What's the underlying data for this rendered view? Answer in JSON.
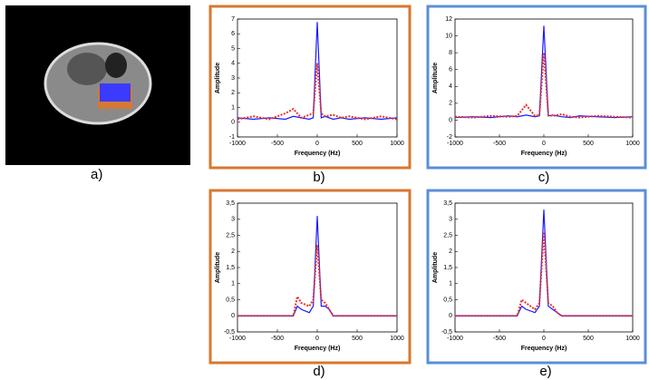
{
  "image_caption": "a)",
  "chart_data": [
    {
      "type": "line",
      "caption": "b)",
      "frame_color": "#d9772e",
      "x_label": "Frequency (Hz)",
      "y_label": "Amplitude",
      "x": [
        -1000,
        -800,
        -600,
        -400,
        -300,
        -200,
        -100,
        -50,
        0,
        50,
        100,
        200,
        300,
        400,
        600,
        800,
        1000
      ],
      "xlim": [
        -1000,
        1000
      ],
      "xticks": [
        -1000,
        -500,
        0,
        500,
        1000
      ],
      "ylim": [
        -1,
        7
      ],
      "yticks": [
        -1,
        0,
        1,
        2,
        3,
        4,
        5,
        6,
        7
      ],
      "series": [
        {
          "color": "#1a1aff",
          "line_style": "solid",
          "values": [
            0.3,
            0.2,
            0.3,
            0.2,
            0.4,
            0.3,
            0.2,
            0.3,
            6.8,
            0.3,
            0.4,
            0.2,
            0.3,
            0.2,
            0.3,
            0.2,
            0.3
          ]
        },
        {
          "color": "#e8302a",
          "line_style": "dotted",
          "values": [
            0.2,
            0.4,
            0.2,
            0.6,
            0.9,
            0.3,
            0.5,
            0.6,
            4,
            0.6,
            0.4,
            0.5,
            0.3,
            0.4,
            0.2,
            0.4,
            0.2
          ]
        }
      ]
    },
    {
      "type": "line",
      "caption": "c)",
      "frame_color": "#5b8fd6",
      "x_label": "Frequency (Hz)",
      "y_label": "Amplitude",
      "x": [
        -1000,
        -800,
        -600,
        -400,
        -300,
        -200,
        -100,
        -50,
        0,
        50,
        100,
        200,
        300,
        400,
        600,
        800,
        1000
      ],
      "xlim": [
        -1000,
        1000
      ],
      "xticks": [
        -1000,
        -500,
        0,
        500,
        1000
      ],
      "ylim": [
        -2,
        12
      ],
      "yticks": [
        -2,
        0,
        2,
        4,
        6,
        8,
        10,
        12
      ],
      "series": [
        {
          "color": "#1a1aff",
          "line_style": "solid",
          "values": [
            0.3,
            0.4,
            0.3,
            0.5,
            0.4,
            0.6,
            0.4,
            0.5,
            11.2,
            0.5,
            0.6,
            0.4,
            0.3,
            0.5,
            0.4,
            0.3,
            0.4
          ]
        },
        {
          "color": "#e8302a",
          "line_style": "dotted",
          "values": [
            0.4,
            0.3,
            0.5,
            0.4,
            0.5,
            1.8,
            0.5,
            0.6,
            8,
            0.6,
            0.5,
            0.7,
            0.4,
            0.3,
            0.5,
            0.4,
            0.3
          ]
        }
      ]
    },
    {
      "type": "line",
      "caption": "d)",
      "frame_color": "#d9772e",
      "x_label": "Frequency (Hz)",
      "y_label": "Amplitude",
      "x": [
        -1000,
        -800,
        -600,
        -400,
        -300,
        -250,
        -200,
        -100,
        -50,
        0,
        50,
        100,
        150,
        200,
        400,
        600,
        800,
        1000
      ],
      "xlim": [
        -1000,
        1000
      ],
      "xticks": [
        -1000,
        -500,
        0,
        500,
        1000
      ],
      "ylim": [
        -0.5,
        3.5
      ],
      "yticks": [
        {
          "value": -0.5,
          "label": "-0,5"
        },
        0,
        {
          "value": 0.5,
          "label": "0,5"
        },
        1,
        {
          "value": 1.5,
          "label": "1,5"
        },
        2,
        {
          "value": 2.5,
          "label": "2,5"
        },
        3,
        {
          "value": 3.5,
          "label": "3,5"
        }
      ],
      "series": [
        {
          "color": "#1a1aff",
          "line_style": "solid",
          "values": [
            0,
            0,
            0,
            0,
            0,
            0.3,
            0.2,
            0.1,
            0.3,
            3.1,
            0.3,
            0.3,
            0.2,
            0,
            0,
            0,
            0,
            0
          ]
        },
        {
          "color": "#e8302a",
          "line_style": "dotted",
          "values": [
            0,
            0,
            0,
            0,
            0,
            0.6,
            0.4,
            0.3,
            0.5,
            2.2,
            0.5,
            0.4,
            0.2,
            0,
            0,
            0,
            0,
            0
          ]
        }
      ]
    },
    {
      "type": "line",
      "caption": "e)",
      "frame_color": "#5b8fd6",
      "x_label": "Frequency (Hz)",
      "y_label": "Amplitude",
      "x": [
        -1000,
        -800,
        -600,
        -400,
        -300,
        -250,
        -200,
        -100,
        -50,
        0,
        50,
        100,
        150,
        200,
        400,
        600,
        800,
        1000
      ],
      "xlim": [
        -1000,
        1000
      ],
      "xticks": [
        -1000,
        -500,
        0,
        500,
        1000
      ],
      "ylim": [
        -0.5,
        3.5
      ],
      "yticks": [
        {
          "value": -0.5,
          "label": "-0,5"
        },
        0,
        {
          "value": 0.5,
          "label": "0,5"
        },
        1,
        {
          "value": 1.5,
          "label": "1,5"
        },
        2,
        {
          "value": 2.5,
          "label": "2,5"
        },
        3,
        {
          "value": 3.5,
          "label": "3,5"
        }
      ],
      "series": [
        {
          "color": "#1a1aff",
          "line_style": "solid",
          "values": [
            0,
            0,
            0,
            0,
            0,
            0.3,
            0.2,
            0.1,
            0.3,
            3.3,
            0.3,
            0.2,
            0.1,
            0,
            0,
            0,
            0,
            0
          ]
        },
        {
          "color": "#e8302a",
          "line_style": "dotted",
          "values": [
            0,
            0,
            0,
            0,
            0,
            0.5,
            0.4,
            0.2,
            0.4,
            2.6,
            0.4,
            0.3,
            0.1,
            0,
            0,
            0,
            0,
            0
          ]
        }
      ]
    }
  ]
}
